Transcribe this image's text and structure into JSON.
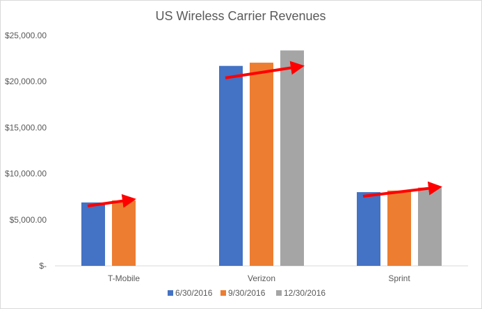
{
  "chart_data": {
    "type": "bar",
    "title": "US Wireless Carrier Revenues",
    "xlabel": "",
    "ylabel": "",
    "categories": [
      "T-Mobile",
      "Verizon",
      "Sprint"
    ],
    "series": [
      {
        "name": "6/30/2016",
        "color": "#4472C4",
        "values": [
          6880,
          21700,
          8000
        ]
      },
      {
        "name": "9/30/2016",
        "color": "#ED7D31",
        "values": [
          7100,
          22050,
          8170
        ]
      },
      {
        "name": "12/30/2016",
        "color": "#A5A5A5",
        "values": [
          null,
          23380,
          8500
        ]
      }
    ],
    "ylim": [
      0,
      25000
    ],
    "yticks": [
      0,
      5000,
      10000,
      15000,
      20000,
      25000
    ],
    "ytick_labels": [
      "$-",
      "$5,000.00",
      "$10,000.00",
      "$15,000.00",
      "$20,000.00",
      "$25,000.00"
    ],
    "grid": false,
    "legend_position": "bottom",
    "annotations": [
      {
        "type": "trend-arrow",
        "color": "#FF0000",
        "category": "T-Mobile",
        "from_value": 6500,
        "to_value": 7150
      },
      {
        "type": "trend-arrow",
        "color": "#FF0000",
        "category": "Verizon",
        "from_value": 20400,
        "to_value": 21600
      },
      {
        "type": "trend-arrow",
        "color": "#FF0000",
        "category": "Sprint",
        "from_value": 7550,
        "to_value": 8500
      }
    ]
  }
}
